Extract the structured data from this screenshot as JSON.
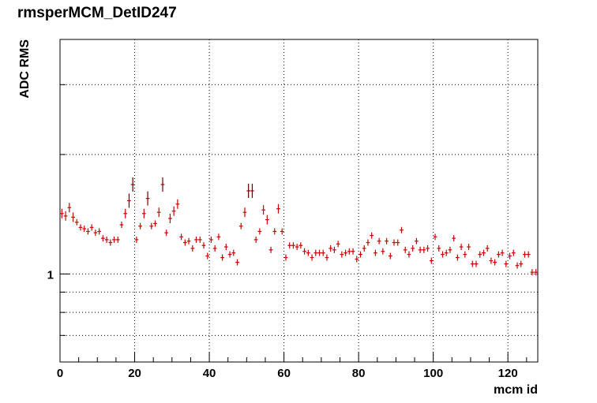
{
  "chart_data": {
    "type": "scatter",
    "title": "rmsperMCM_DetID247",
    "xlabel": "mcm id",
    "ylabel": "ADC RMS",
    "xlim": [
      0,
      128
    ],
    "ylim": [
      0.6,
      3.9
    ],
    "y_scale": "log",
    "grid": true,
    "legend": "none",
    "x_ticks": [
      0,
      20,
      40,
      60,
      80,
      100,
      120
    ],
    "y_ticks": [
      1
    ],
    "marker_color": "#cc0000",
    "series": [
      {
        "x": [
          0.5,
          1.5,
          2.5,
          3.5,
          4.5,
          5.5,
          6.5,
          7.5,
          8.5,
          9.5,
          10.5,
          11.5,
          12.5,
          13.5,
          14.5,
          15.5,
          16.5,
          17.5,
          18.5,
          19.5,
          20.5,
          21.5,
          22.5,
          23.5,
          24.5,
          25.5,
          26.5,
          27.5,
          28.5,
          29.5,
          30.5,
          31.5,
          32.5,
          33.5,
          34.5,
          35.5,
          36.5,
          37.5,
          38.5,
          39.5,
          40.5,
          41.5,
          42.5,
          43.5,
          44.5,
          45.5,
          46.5,
          47.5,
          48.5,
          49.5,
          50.5,
          51.5,
          52.5,
          53.5,
          54.5,
          55.5,
          56.5,
          57.5,
          58.5,
          59.5,
          60.5,
          61.5,
          62.5,
          63.5,
          64.5,
          65.5,
          66.5,
          67.5,
          68.5,
          69.5,
          70.5,
          71.5,
          72.5,
          73.5,
          74.5,
          75.5,
          76.5,
          77.5,
          78.5,
          79.5,
          80.5,
          81.5,
          82.5,
          83.5,
          84.5,
          85.5,
          86.5,
          87.5,
          88.5,
          89.5,
          90.5,
          91.5,
          92.5,
          93.5,
          94.5,
          95.5,
          96.5,
          97.5,
          98.5,
          99.5,
          100.5,
          101.5,
          102.5,
          103.5,
          104.5,
          105.5,
          106.5,
          107.5,
          108.5,
          109.5,
          110.5,
          111.5,
          112.5,
          113.5,
          114.5,
          115.5,
          116.5,
          117.5,
          118.5,
          119.5,
          120.5,
          121.5,
          122.5,
          123.5,
          124.5,
          125.5,
          126.5,
          127.5
        ],
        "y": [
          1.42,
          1.4,
          1.47,
          1.39,
          1.35,
          1.31,
          1.3,
          1.28,
          1.31,
          1.27,
          1.28,
          1.23,
          1.22,
          1.2,
          1.22,
          1.22,
          1.33,
          1.42,
          1.53,
          1.68,
          1.22,
          1.32,
          1.42,
          1.55,
          1.32,
          1.34,
          1.43,
          1.68,
          1.27,
          1.38,
          1.44,
          1.5,
          1.24,
          1.2,
          1.21,
          1.16,
          1.22,
          1.22,
          1.18,
          1.11,
          1.22,
          1.16,
          1.24,
          1.1,
          1.17,
          1.12,
          1.13,
          1.07,
          1.32,
          1.43,
          1.62,
          1.62,
          1.22,
          1.28,
          1.45,
          1.37,
          1.15,
          1.28,
          1.46,
          1.28,
          1.1,
          1.18,
          1.18,
          1.17,
          1.18,
          1.14,
          1.13,
          1.1,
          1.13,
          1.13,
          1.13,
          1.1,
          1.16,
          1.15,
          1.19,
          1.12,
          1.13,
          1.14,
          1.14,
          1.09,
          1.12,
          1.16,
          1.2,
          1.25,
          1.13,
          1.21,
          1.14,
          1.21,
          1.11,
          1.2,
          1.2,
          1.29,
          1.15,
          1.12,
          1.16,
          1.21,
          1.15,
          1.15,
          1.16,
          1.08,
          1.24,
          1.16,
          1.12,
          1.13,
          1.15,
          1.23,
          1.1,
          1.17,
          1.12,
          1.17,
          1.06,
          1.06,
          1.12,
          1.13,
          1.16,
          1.08,
          1.07,
          1.12,
          1.13,
          1.06,
          1.11,
          1.13,
          1.05,
          1.06,
          1.12,
          1.12,
          1.01,
          1.01
        ]
      }
    ]
  }
}
